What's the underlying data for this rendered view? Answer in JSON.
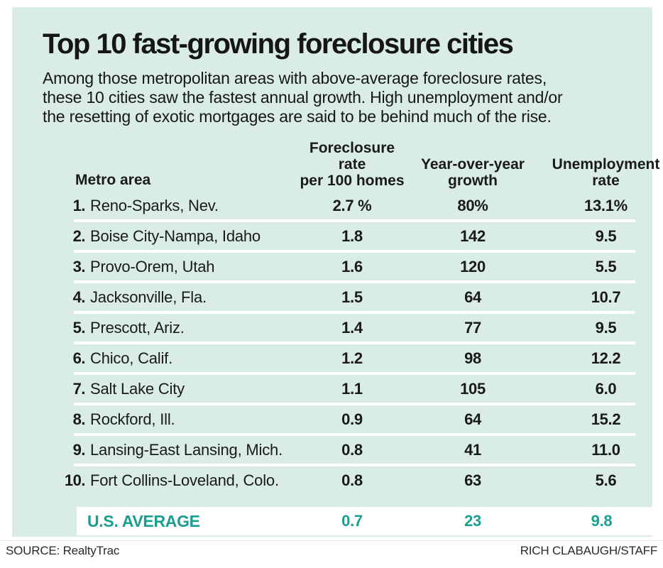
{
  "colors": {
    "panel_bg": "#d9ece8",
    "separator": "#ffffff",
    "band_bg": "#ffffff",
    "accent": "#1a9e90",
    "ink": "#161616"
  },
  "header": {
    "title": "Top 10 fast-growing foreclosure cities",
    "subtitle_lines": [
      "Among those metropolitan areas with above-average foreclosure rates,",
      "these 10 cities saw the fastest annual growth. High unemployment and/or",
      "the resetting of exotic mortgages are said to be behind much of the rise."
    ]
  },
  "table": {
    "columns": {
      "metro": "Metro area",
      "col2": [
        "Foreclosure rate",
        "per 100 homes"
      ],
      "col3": [
        "Year-over-year",
        "growth"
      ],
      "col4": [
        "Unemployment",
        "rate"
      ]
    },
    "rows": [
      {
        "rank": "1.",
        "metro": "Reno-Sparks, Nev.",
        "rate": "2.7 %",
        "growth": "80%",
        "unemployment": "13.1%"
      },
      {
        "rank": "2.",
        "metro": "Boise City-Nampa, Idaho",
        "rate": "1.8",
        "growth": "142",
        "unemployment": "9.5"
      },
      {
        "rank": "3.",
        "metro": "Provo-Orem, Utah",
        "rate": "1.6",
        "growth": "120",
        "unemployment": "5.5"
      },
      {
        "rank": "4.",
        "metro": "Jacksonville, Fla.",
        "rate": "1.5",
        "growth": "64",
        "unemployment": "10.7"
      },
      {
        "rank": "5.",
        "metro": "Prescott, Ariz.",
        "rate": "1.4",
        "growth": "77",
        "unemployment": "9.5"
      },
      {
        "rank": "6.",
        "metro": "Chico, Calif.",
        "rate": "1.2",
        "growth": "98",
        "unemployment": "12.2"
      },
      {
        "rank": "7.",
        "metro": "Salt Lake City",
        "rate": "1.1",
        "growth": "105",
        "unemployment": "6.0"
      },
      {
        "rank": "8.",
        "metro": "Rockford, Ill.",
        "rate": "0.9",
        "growth": "64",
        "unemployment": "15.2"
      },
      {
        "rank": "9.",
        "metro": "Lansing-East Lansing, Mich.",
        "rate": "0.8",
        "growth": "41",
        "unemployment": "11.0"
      },
      {
        "rank": "10.",
        "metro": "Fort Collins-Loveland, Colo.",
        "rate": "0.8",
        "growth": "63",
        "unemployment": "5.6"
      }
    ],
    "average": {
      "label": "U.S. AVERAGE",
      "rate": "0.7",
      "growth": "23",
      "unemployment": "9.8"
    }
  },
  "footer": {
    "source": "SOURCE: RealtyTrac",
    "credit": "RICH CLABAUGH/STAFF"
  },
  "chart_data": {
    "type": "table",
    "title": "Top 10 fast-growing foreclosure cities",
    "subtitle": "Among those metropolitan areas with above-average foreclosure rates, these 10 cities saw the fastest annual growth. High unemployment and/or the resetting of exotic mortgages are said to be behind much of the rise.",
    "columns": [
      "Metro area",
      "Foreclosure rate per 100 homes (%)",
      "Year-over-year growth (%)",
      "Unemployment rate (%)"
    ],
    "rows": [
      [
        "Reno-Sparks, Nev.",
        2.7,
        80,
        13.1
      ],
      [
        "Boise City-Nampa, Idaho",
        1.8,
        142,
        9.5
      ],
      [
        "Provo-Orem, Utah",
        1.6,
        120,
        5.5
      ],
      [
        "Jacksonville, Fla.",
        1.5,
        64,
        10.7
      ],
      [
        "Prescott, Ariz.",
        1.4,
        77,
        9.5
      ],
      [
        "Chico, Calif.",
        1.2,
        98,
        12.2
      ],
      [
        "Salt Lake City",
        1.1,
        105,
        6.0
      ],
      [
        "Rockford, Ill.",
        0.9,
        64,
        15.2
      ],
      [
        "Lansing-East Lansing, Mich.",
        0.8,
        41,
        11.0
      ],
      [
        "Fort Collins-Loveland, Colo.",
        0.8,
        63,
        5.6
      ]
    ],
    "us_average": [
      "U.S. AVERAGE",
      0.7,
      23,
      9.8
    ],
    "source": "RealtyTrac",
    "credit": "RICH CLABAUGH/STAFF"
  }
}
